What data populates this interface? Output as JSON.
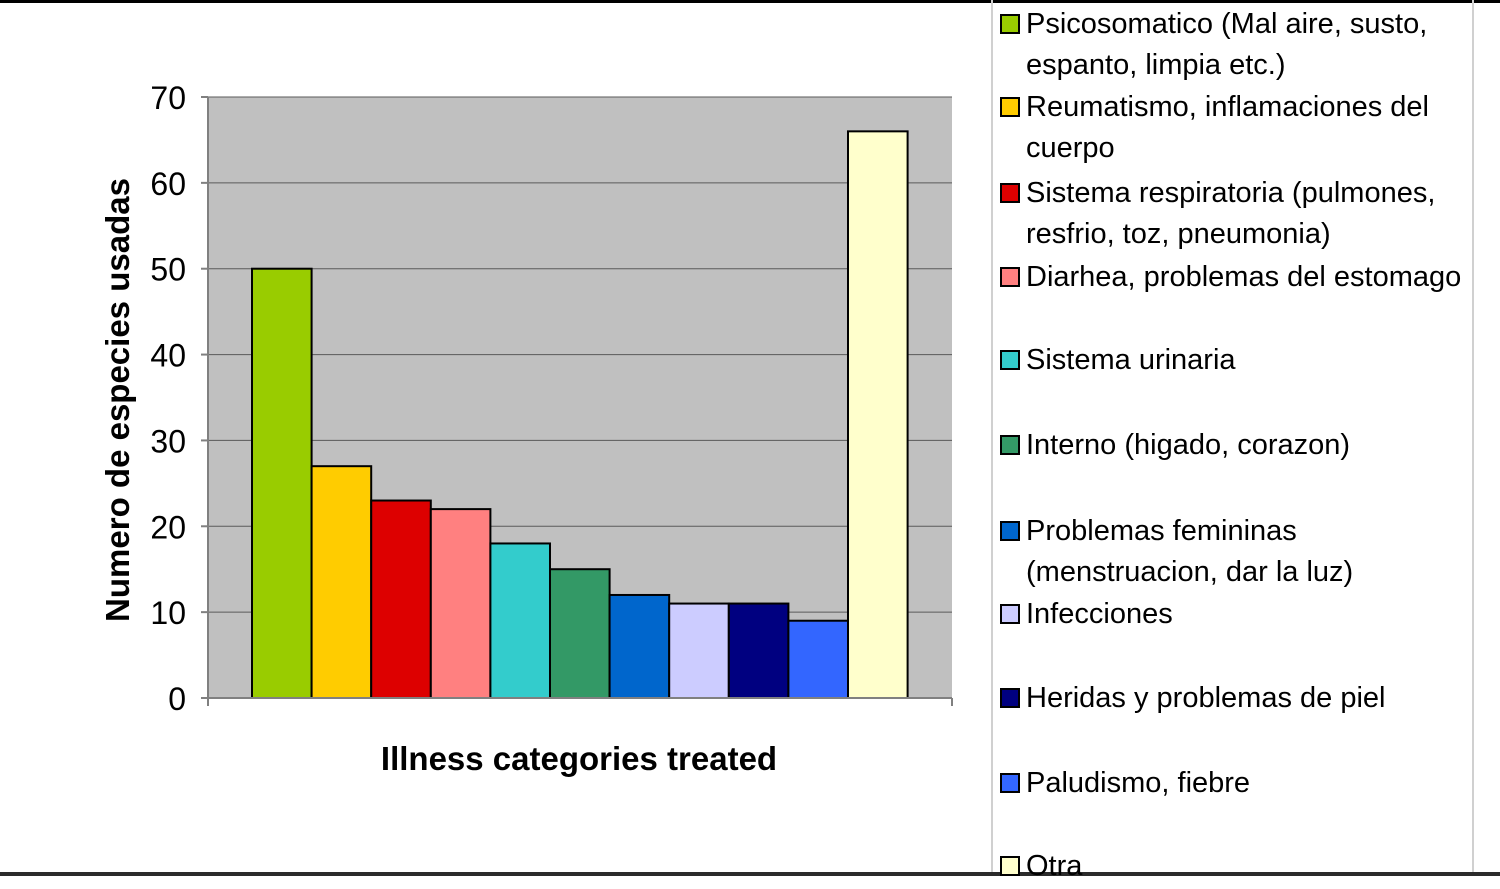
{
  "chart_data": {
    "type": "bar",
    "xlabel": "Illness categories treated",
    "ylabel": "Numero de especies usadas",
    "ylim": [
      0,
      70
    ],
    "yticks": [
      0,
      10,
      20,
      30,
      40,
      50,
      60,
      70
    ],
    "grid": true,
    "legend_position": "right",
    "plot_background": "#C0C0C0",
    "series": [
      {
        "name": "Psicosomatico (Mal aire, susto, espanto, limpia etc.)",
        "value": 50,
        "color": "#99CC00"
      },
      {
        "name": "Reumatismo, inflamaciones del cuerpo",
        "value": 27,
        "color": "#FFCC00"
      },
      {
        "name": "Sistema respiratoria (pulmones, resfrio, toz, pneumonia)",
        "value": 23,
        "color": "#DD0000"
      },
      {
        "name": "Diarhea, problemas del estomago",
        "value": 22,
        "color": "#FF8080"
      },
      {
        "name": "Sistema urinaria",
        "value": 18,
        "color": "#33CCCC"
      },
      {
        "name": "Interno (higado, corazon)",
        "value": 15,
        "color": "#339966"
      },
      {
        "name": "Problemas femininas (menstruacion, dar la luz)",
        "value": 12,
        "color": "#0066CC"
      },
      {
        "name": "Infecciones",
        "value": 11,
        "color": "#CCCCFF"
      },
      {
        "name": "Heridas y problemas de piel",
        "value": 11,
        "color": "#000080"
      },
      {
        "name": "Paludismo, fiebre",
        "value": 9,
        "color": "#3366FF"
      },
      {
        "name": "Otra",
        "value": 66,
        "color": "#FFFFCC"
      }
    ]
  }
}
